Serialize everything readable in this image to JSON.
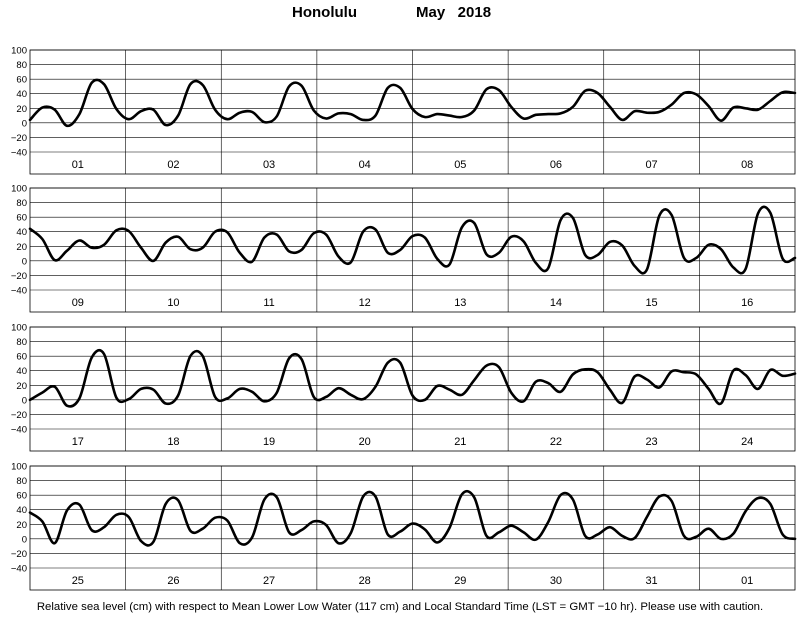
{
  "header": {
    "location": "Honolulu",
    "month": "May   2018"
  },
  "caption": "Relative sea level (cm) with respect to Mean Lower Low Water (117 cm) and Local Standard Time (LST = GMT −10 hr).  Please use with caution.",
  "chart_data": {
    "type": "line",
    "ylabel": "",
    "ylim": [
      -40,
      100
    ],
    "yticks": [
      -40,
      -20,
      0,
      20,
      40,
      60,
      80,
      100
    ],
    "grid": true,
    "line_color": "#000000",
    "panels": [
      {
        "x_labels": [
          "01",
          "02",
          "03",
          "04",
          "05",
          "06",
          "07",
          "08"
        ],
        "y": [
          4,
          21,
          18,
          -4,
          12,
          55,
          53,
          19,
          5,
          16,
          18,
          -3,
          10,
          53,
          52,
          18,
          5,
          14,
          15,
          1,
          9,
          50,
          51,
          17,
          6,
          13,
          12,
          4,
          10,
          48,
          48,
          19,
          8,
          12,
          10,
          8,
          17,
          46,
          45,
          22,
          6,
          11,
          12,
          13,
          22,
          44,
          41,
          22,
          4,
          16,
          14,
          15,
          25,
          41,
          39,
          23,
          3,
          21,
          20,
          18,
          30,
          42,
          41
        ]
      },
      {
        "x_labels": [
          "09",
          "10",
          "11",
          "12",
          "13",
          "14",
          "15",
          "16"
        ],
        "y": [
          44,
          30,
          1,
          14,
          28,
          18,
          22,
          42,
          41,
          18,
          0,
          25,
          33,
          16,
          18,
          40,
          39,
          11,
          -1,
          32,
          36,
          13,
          15,
          38,
          36,
          6,
          -2,
          40,
          43,
          11,
          15,
          34,
          32,
          3,
          -5,
          46,
          52,
          9,
          11,
          33,
          27,
          -3,
          -10,
          56,
          59,
          8,
          8,
          26,
          21,
          -7,
          -12,
          62,
          63,
          4,
          4,
          22,
          16,
          -9,
          -11,
          65,
          66,
          3,
          4
        ]
      },
      {
        "x_labels": [
          "17",
          "18",
          "19",
          "20",
          "21",
          "22",
          "23",
          "24"
        ],
        "y": [
          0,
          10,
          18,
          -8,
          2,
          58,
          63,
          3,
          1,
          15,
          14,
          -5,
          6,
          60,
          60,
          4,
          2,
          15,
          11,
          -2,
          10,
          57,
          56,
          4,
          4,
          16,
          7,
          1,
          18,
          51,
          51,
          6,
          0,
          19,
          14,
          7,
          27,
          47,
          45,
          10,
          -2,
          25,
          23,
          11,
          35,
          42,
          38,
          14,
          -4,
          32,
          28,
          17,
          39,
          38,
          35,
          15,
          -5,
          40,
          34,
          15,
          41,
          33,
          36
        ]
      },
      {
        "x_labels": [
          "25",
          "26",
          "27",
          "28",
          "29",
          "30",
          "31",
          "01"
        ],
        "y": [
          36,
          24,
          -6,
          39,
          47,
          12,
          16,
          33,
          30,
          -3,
          -4,
          48,
          53,
          11,
          14,
          29,
          25,
          -6,
          2,
          54,
          57,
          9,
          12,
          24,
          19,
          -6,
          8,
          58,
          58,
          6,
          10,
          21,
          13,
          -5,
          15,
          61,
          57,
          4,
          9,
          18,
          9,
          -1,
          23,
          60,
          54,
          4,
          6,
          16,
          4,
          1,
          30,
          58,
          52,
          4,
          3,
          14,
          0,
          7,
          38,
          56,
          48,
          6,
          0
        ]
      }
    ]
  }
}
